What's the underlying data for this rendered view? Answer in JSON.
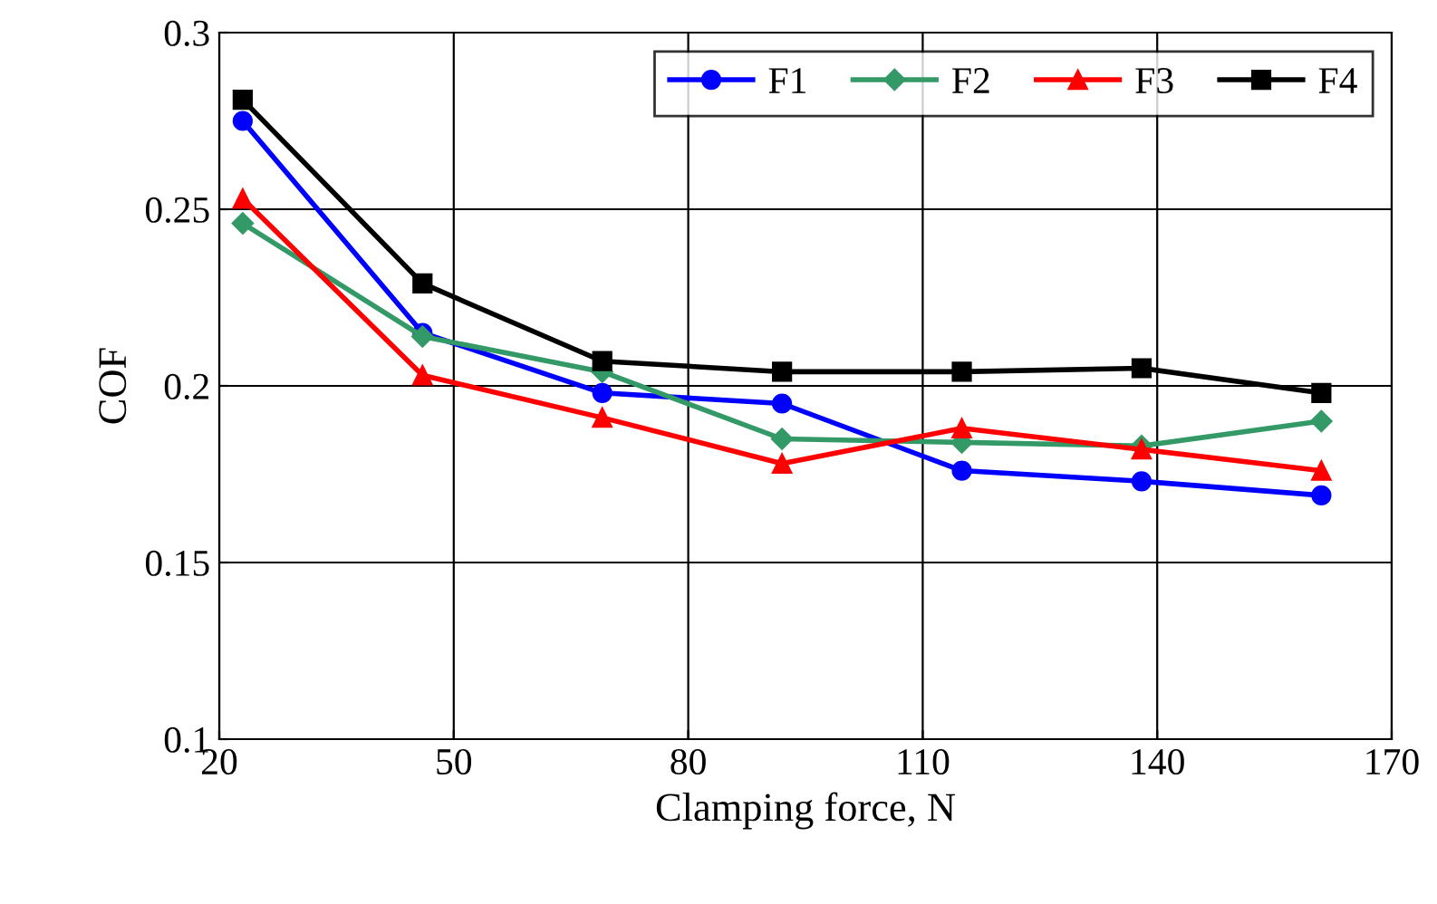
{
  "chart_data": {
    "type": "line",
    "xlabel": "Clamping force, N",
    "ylabel": "COF",
    "x": [
      23,
      46,
      69,
      92,
      115,
      138,
      161
    ],
    "series": [
      {
        "name": "F1",
        "color": "#0000ff",
        "marker": "circle",
        "values": [
          0.275,
          0.215,
          0.198,
          0.195,
          0.176,
          0.173,
          0.169
        ]
      },
      {
        "name": "F2",
        "color": "#339966",
        "marker": "diamond",
        "values": [
          0.246,
          0.214,
          0.204,
          0.185,
          0.184,
          0.183,
          0.19
        ]
      },
      {
        "name": "F3",
        "color": "#ff0000",
        "marker": "triangle",
        "values": [
          0.253,
          0.203,
          0.191,
          0.178,
          0.188,
          0.182,
          0.176
        ]
      },
      {
        "name": "F4",
        "color": "#000000",
        "marker": "square",
        "values": [
          0.281,
          0.229,
          0.207,
          0.204,
          0.204,
          0.205,
          0.198
        ]
      }
    ],
    "xlim": [
      20,
      170
    ],
    "xticks": [
      20,
      50,
      80,
      110,
      140,
      170
    ],
    "ylim": [
      0.1,
      0.3
    ],
    "yticks": [
      0.1,
      0.15,
      0.2,
      0.25,
      0.3
    ],
    "grid": true,
    "legend": "top right",
    "line_style": "solid"
  }
}
